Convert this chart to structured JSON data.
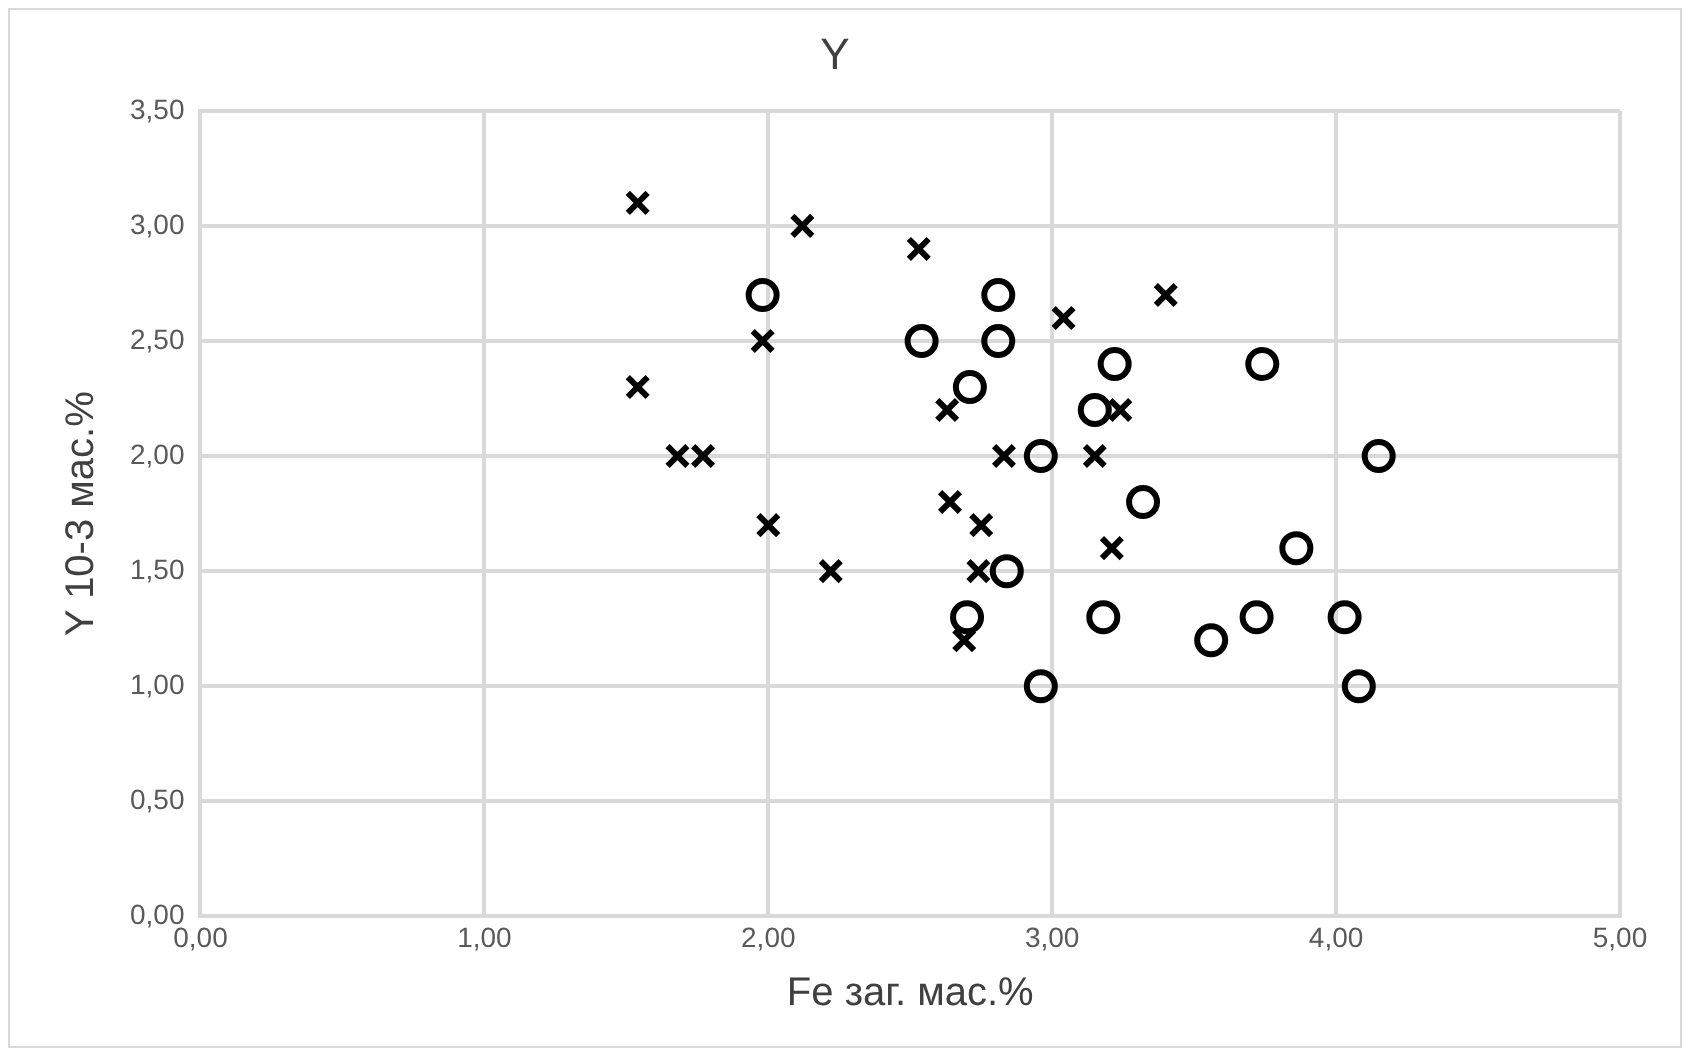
{
  "chart_data": {
    "type": "scatter",
    "title": "Y",
    "xlabel": "Fe заг. мас.%",
    "ylabel": "Y 10-3 мас.%",
    "xlim": [
      0,
      5
    ],
    "xticks": [
      {
        "value": 0,
        "label": "0,00"
      },
      {
        "value": 1,
        "label": "1,00"
      },
      {
        "value": 2,
        "label": "2,00"
      },
      {
        "value": 3,
        "label": "3,00"
      },
      {
        "value": 4,
        "label": "4,00"
      },
      {
        "value": 5,
        "label": "5,00"
      }
    ],
    "ylim": [
      0,
      3.5
    ],
    "yticks": [
      {
        "value": 0,
        "label": "0,00"
      },
      {
        "value": 0.5,
        "label": "0,50"
      },
      {
        "value": 1,
        "label": "1,00"
      },
      {
        "value": 1.5,
        "label": "1,50"
      },
      {
        "value": 2,
        "label": "2,00"
      },
      {
        "value": 2.5,
        "label": "2,50"
      },
      {
        "value": 3,
        "label": "3,00"
      },
      {
        "value": 3.5,
        "label": "3,50"
      }
    ],
    "grid": true,
    "legend": false,
    "series": [
      {
        "color": "#000000",
        "marker": "cross",
        "x": [
          1.54,
          2.12,
          2.53,
          3.04,
          3.4,
          1.98,
          1.54,
          2.63,
          3.24,
          1.68,
          1.77,
          2.83,
          3.15,
          2.0,
          2.64,
          2.75,
          2.22,
          2.74,
          3.21,
          2.69
        ],
        "values": [
          3.1,
          3.0,
          2.9,
          2.6,
          2.7,
          2.5,
          2.3,
          2.2,
          2.2,
          2.0,
          2.0,
          2.0,
          2.0,
          1.7,
          1.8,
          1.7,
          1.5,
          1.5,
          1.6,
          1.2
        ]
      },
      {
        "color": "#000000",
        "marker": "circle",
        "x": [
          1.98,
          2.81,
          2.54,
          2.81,
          2.71,
          3.22,
          3.74,
          3.15,
          2.96,
          4.15,
          3.32,
          3.86,
          2.84,
          2.7,
          3.18,
          3.72,
          4.03,
          3.56,
          2.96,
          4.08
        ],
        "values": [
          2.7,
          2.7,
          2.5,
          2.5,
          2.3,
          2.4,
          2.4,
          2.2,
          2.0,
          2.0,
          1.8,
          1.6,
          1.5,
          1.3,
          1.3,
          1.3,
          1.3,
          1.2,
          1.0,
          1.0
        ]
      }
    ]
  }
}
